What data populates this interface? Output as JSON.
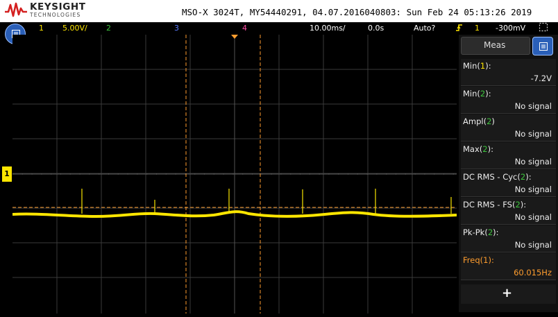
{
  "header": {
    "brand": "KEYSIGHT",
    "brand_sub": "TECHNOLOGIES",
    "title": "MSO-X 3024T, MY54440291, 04.07.2016040803: Sun Feb 24 05:13:26 2019"
  },
  "status_bar": {
    "ch1_label": "1",
    "ch1_scale": "5.00V/",
    "ch2_label": "2",
    "ch3_label": "3",
    "ch4_label": "4",
    "timebase": "10.00ms/",
    "delay": "0.0s",
    "trigger_mode": "Auto?",
    "trigger_source": "1",
    "trigger_level": "-300mV"
  },
  "colors": {
    "ch1": "#ffe600",
    "ch2": "#3ec43e",
    "ch3": "#5a7cff",
    "ch4": "#ff4da6",
    "cursor": "#ff9d2e",
    "freq": "#ff9d2e"
  },
  "panel": {
    "tab_label": "Meas",
    "measurements": [
      {
        "name": "Min",
        "channel": "1",
        "value": "-7.2V"
      },
      {
        "name": "Min",
        "channel": "2",
        "value": "No signal"
      },
      {
        "name": "Ampl",
        "channel": "2",
        "value": "No signal"
      },
      {
        "name": "Max",
        "channel": "2",
        "value": "No signal"
      },
      {
        "name": "DC RMS - Cyc",
        "channel": "2",
        "value": "No signal"
      },
      {
        "name": "DC RMS - FS",
        "channel": "2",
        "value": "No signal"
      },
      {
        "name": "Pk-Pk",
        "channel": "2",
        "value": "No signal"
      },
      {
        "name": "Freq",
        "channel": "1",
        "value": "60.015Hz"
      }
    ],
    "add_label": "+"
  },
  "ch1_marker": "1",
  "icons": {
    "menu_left": "menu-icon",
    "menu_right": "menu-icon",
    "trigger": "trigger-edge-icon",
    "expand": "expand-icon"
  }
}
